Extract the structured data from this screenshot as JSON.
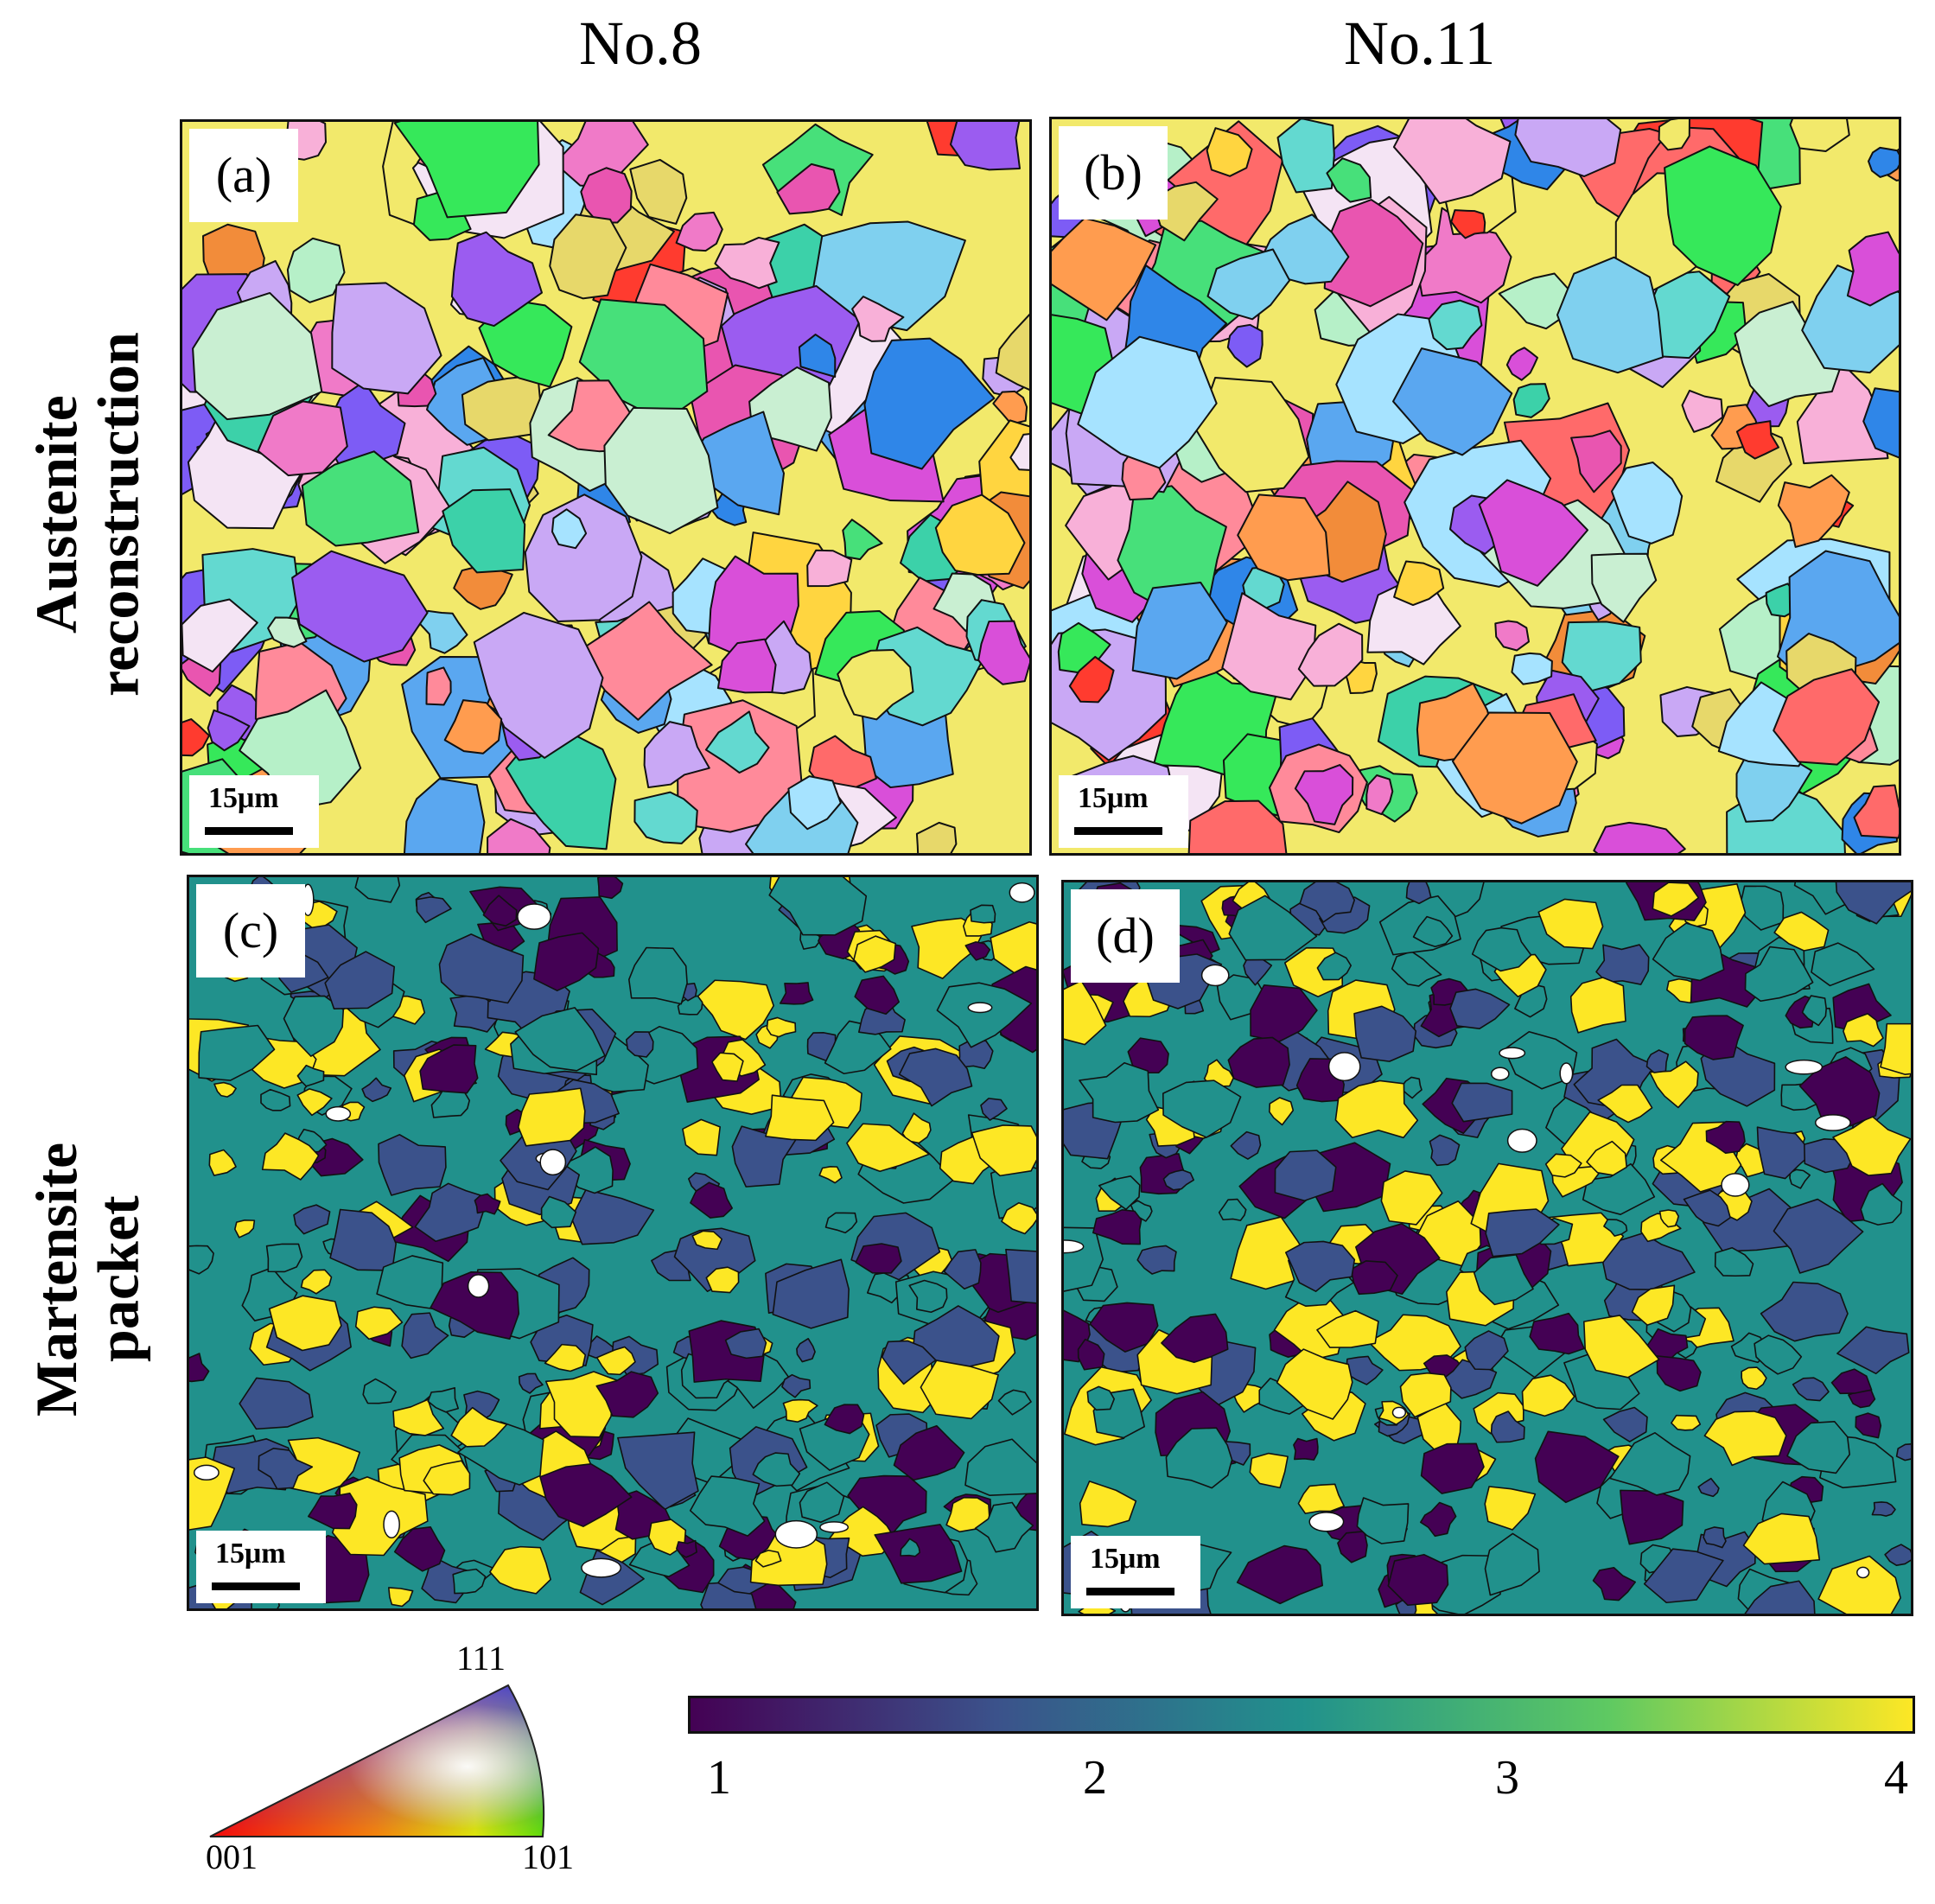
{
  "columns": {
    "no8": "No.8",
    "no11": "No.11"
  },
  "rows": {
    "austenite": {
      "line1": "Austenite",
      "line2": "reconstruction"
    },
    "martensite": {
      "line1": "Martensite",
      "line2": "packet"
    }
  },
  "panels": {
    "a": {
      "label": "(a)",
      "scale": "15μm"
    },
    "b": {
      "label": "(b)",
      "scale": "15μm"
    },
    "c": {
      "label": "(c)",
      "scale": "15μm"
    },
    "d": {
      "label": "(d)",
      "scale": "15μm"
    }
  },
  "ipf_legend": {
    "top": "111",
    "left": "001",
    "right": "101"
  },
  "colorbar": {
    "ticks": [
      "1",
      "2",
      "3",
      "4"
    ],
    "colors": [
      "#440154",
      "#3b528b",
      "#21918c",
      "#fde725"
    ]
  },
  "palette_ipf": [
    "#f2e96b",
    "#e955b0",
    "#f28c3a",
    "#7fd0ef",
    "#2f86e8",
    "#b6f0c8",
    "#f8b0d8",
    "#9b5cf0",
    "#ff3b2f",
    "#47e07a",
    "#c9efd2",
    "#ff9c4f",
    "#63d9d0",
    "#f07ac8",
    "#e7d86a",
    "#5aa7f0",
    "#c9a8f5",
    "#3cd1a9",
    "#ff6a6a",
    "#f4e4f4",
    "#a6e3ff",
    "#ffd540",
    "#7d5cf5",
    "#36e85a",
    "#d94fd9",
    "#ff8a9a"
  ]
}
